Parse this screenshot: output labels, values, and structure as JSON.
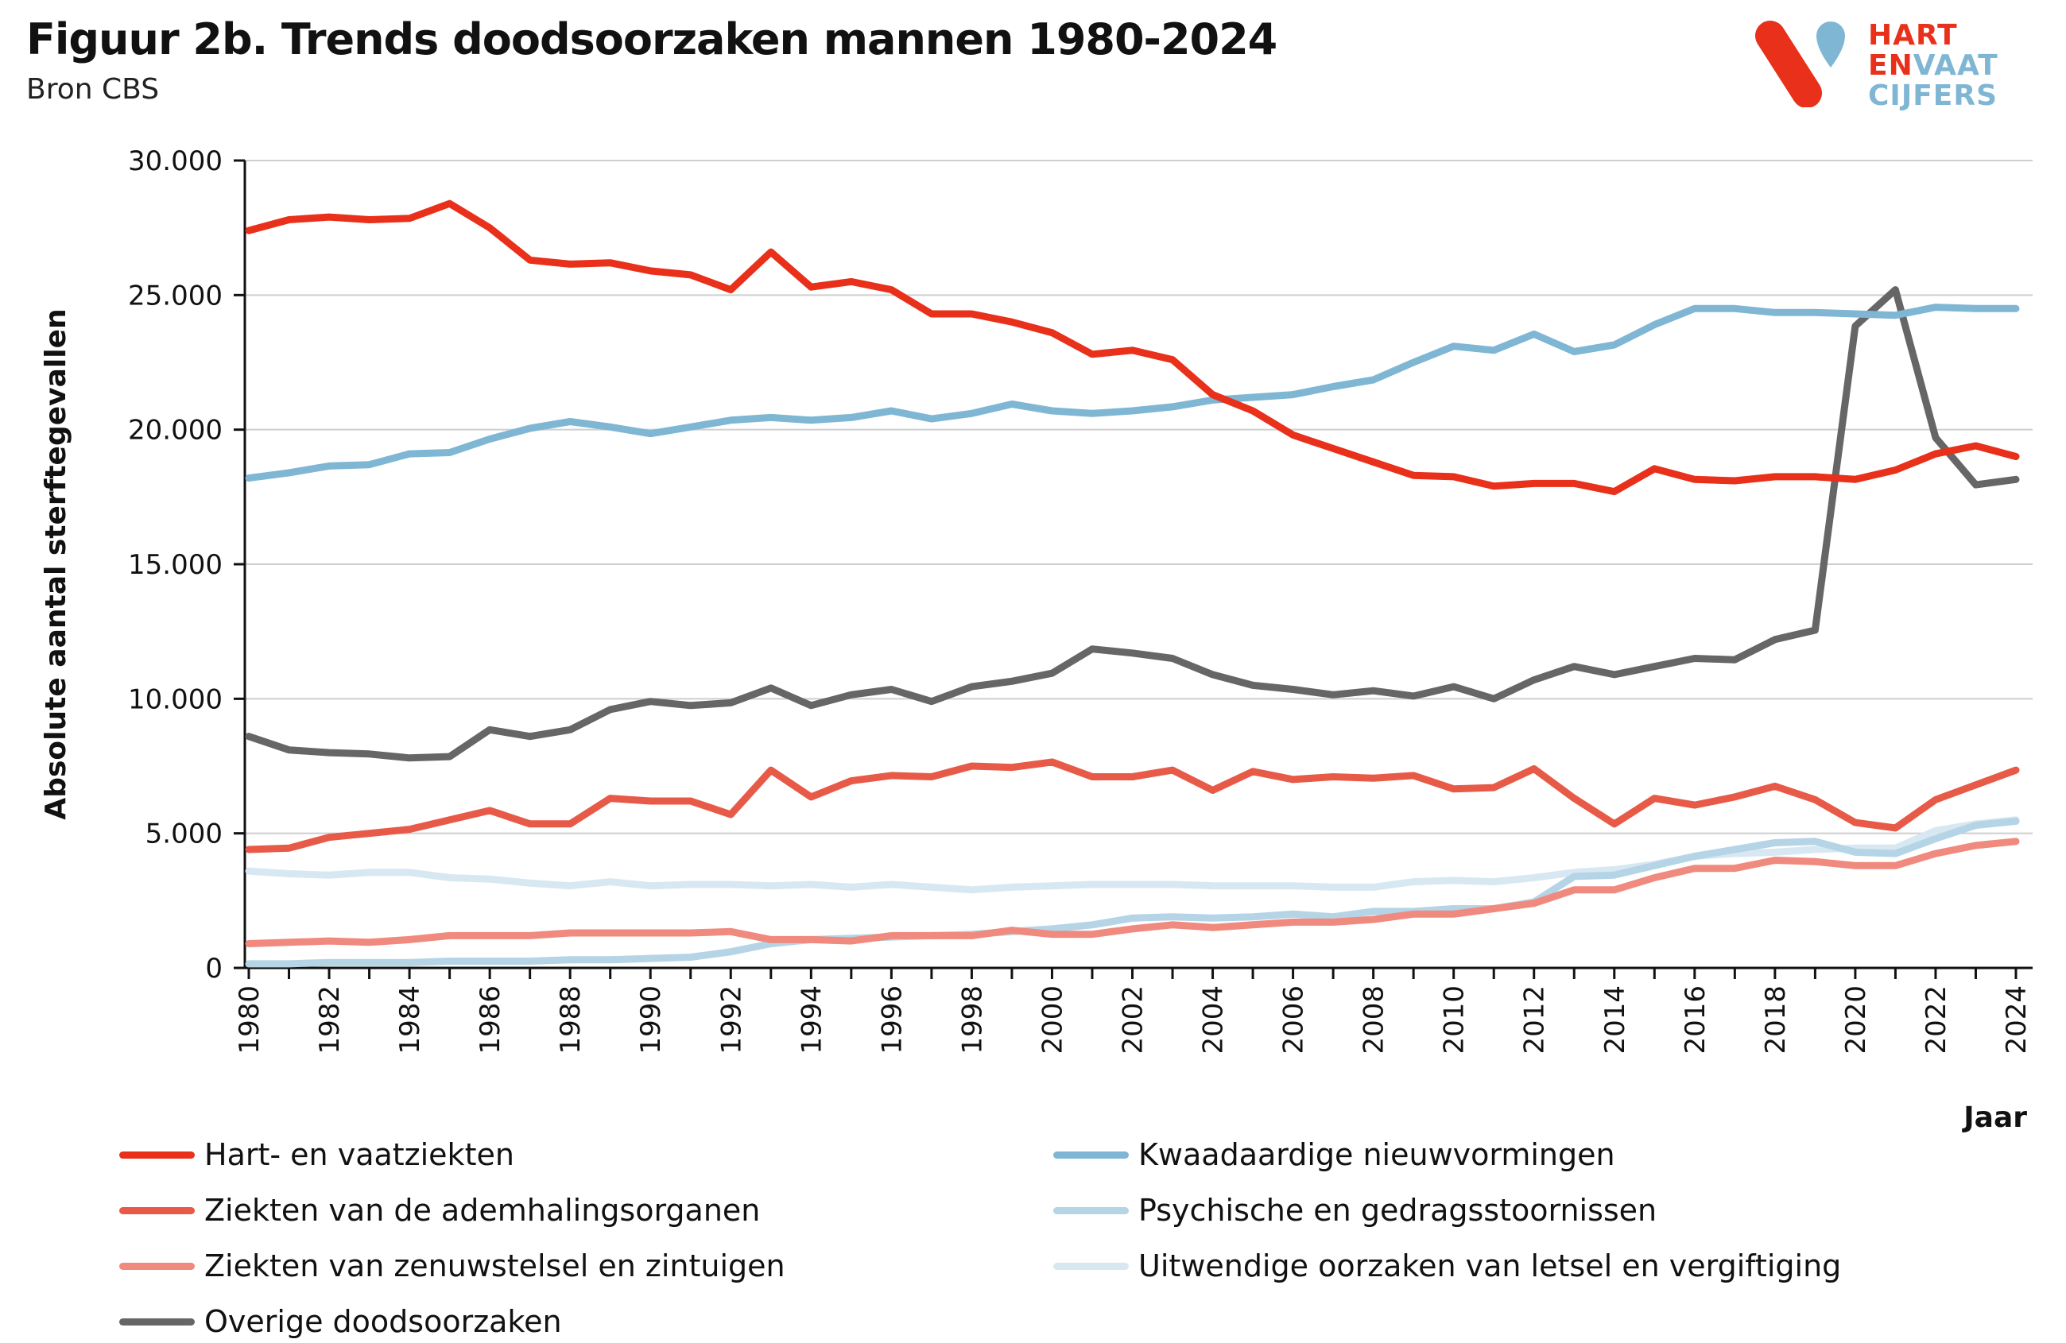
{
  "header": {
    "title": "Figuur 2b. Trends doodsoorzaken mannen 1980-2024",
    "subtitle": "Bron CBS"
  },
  "logo": {
    "line1": "HART",
    "line2a": "EN",
    "line2b": "VAAT",
    "line3": "CIJFERS",
    "colors": {
      "red": "#e8301a",
      "blue": "#7fb6d4"
    }
  },
  "chart_data": {
    "type": "line",
    "title": "Figuur 2b. Trends doodsoorzaken mannen 1980-2024",
    "subtitle": "Bron CBS",
    "xlabel": "Jaar",
    "ylabel": "Absolute aantal sterftegevallen",
    "ylim": [
      0,
      30000
    ],
    "yticks": [
      0,
      5000,
      10000,
      15000,
      20000,
      25000,
      30000
    ],
    "ytick_labels": [
      "0",
      "5.000",
      "10.000",
      "15.000",
      "20.000",
      "25.000",
      "30.000"
    ],
    "xtick_labels": [
      "1980",
      "1982",
      "1984",
      "1986",
      "1988",
      "1990",
      "1992",
      "1994",
      "1996",
      "1998",
      "2000",
      "2002",
      "2004",
      "2006",
      "2008",
      "2010",
      "2012",
      "2014",
      "2016",
      "2018",
      "2020",
      "2022",
      "2024"
    ],
    "grid": "horizontal",
    "legend_position": "bottom",
    "x": [
      1980,
      1981,
      1982,
      1983,
      1984,
      1985,
      1986,
      1987,
      1988,
      1989,
      1990,
      1991,
      1992,
      1993,
      1994,
      1995,
      1996,
      1997,
      1998,
      1999,
      2000,
      2001,
      2002,
      2003,
      2004,
      2005,
      2006,
      2007,
      2008,
      2009,
      2010,
      2011,
      2012,
      2013,
      2014,
      2015,
      2016,
      2017,
      2018,
      2019,
      2020,
      2021,
      2022,
      2023,
      2024
    ],
    "series": [
      {
        "name": "Hart- en vaatziekten",
        "color": "#e8301a",
        "values": [
          27400,
          27800,
          27900,
          27800,
          27850,
          28400,
          27500,
          26300,
          26150,
          26200,
          25900,
          25750,
          25200,
          26600,
          25300,
          25500,
          25200,
          24300,
          24300,
          24000,
          23600,
          22800,
          22950,
          22600,
          21300,
          20700,
          19800,
          19300,
          18800,
          18300,
          18250,
          17900,
          18000,
          18000,
          17700,
          18550,
          18150,
          18100,
          18250,
          18250,
          18150,
          18500,
          19100,
          19400,
          19000
        ]
      },
      {
        "name": "Kwaadaardige nieuwvormingen",
        "color": "#7fb6d4",
        "values": [
          18200,
          18400,
          18650,
          18700,
          19100,
          19150,
          19650,
          20050,
          20300,
          20100,
          19850,
          20100,
          20350,
          20450,
          20350,
          20450,
          20700,
          20400,
          20600,
          20950,
          20700,
          20600,
          20700,
          20850,
          21100,
          21200,
          21300,
          21600,
          21850,
          22500,
          23100,
          22950,
          23550,
          22900,
          23150,
          23900,
          24500,
          24500,
          24350,
          24350,
          24300,
          24250,
          24550,
          24500,
          24500
        ]
      },
      {
        "name": "Ziekten van de ademhalingsorganen",
        "color": "#e85a48",
        "values": [
          4400,
          4450,
          4850,
          5000,
          5150,
          5500,
          5850,
          5350,
          5350,
          6300,
          6200,
          6200,
          5700,
          7350,
          6350,
          6950,
          7150,
          7100,
          7500,
          7450,
          7650,
          7100,
          7100,
          7350,
          6600,
          7300,
          7000,
          7100,
          7050,
          7150,
          6650,
          6700,
          7400,
          6300,
          5350,
          6300,
          6050,
          6350,
          6750,
          6250,
          5400,
          5200,
          6250,
          6800,
          7350
        ]
      },
      {
        "name": "Psychische en gedragsstoornissen",
        "color": "#b5d4e6",
        "values": [
          150,
          150,
          200,
          200,
          200,
          250,
          250,
          250,
          300,
          300,
          350,
          400,
          600,
          900,
          1050,
          1100,
          1150,
          1200,
          1250,
          1350,
          1450,
          1600,
          1850,
          1900,
          1850,
          1900,
          2000,
          1900,
          2100,
          2100,
          2200,
          2200,
          2450,
          3400,
          3450,
          3800,
          4150,
          4400,
          4650,
          4700,
          4300,
          4250,
          4800,
          5300,
          5450
        ]
      },
      {
        "name": "Ziekten van zenuwstelsel en zintuigen",
        "color": "#f08a7e",
        "values": [
          900,
          950,
          1000,
          950,
          1050,
          1200,
          1200,
          1200,
          1300,
          1300,
          1300,
          1300,
          1350,
          1050,
          1050,
          1000,
          1200,
          1200,
          1200,
          1400,
          1250,
          1250,
          1450,
          1600,
          1500,
          1600,
          1700,
          1700,
          1800,
          2000,
          2000,
          2200,
          2400,
          2900,
          2900,
          3350,
          3700,
          3700,
          4000,
          3950,
          3800,
          3800,
          4250,
          4550,
          4700
        ]
      },
      {
        "name": "Uitwendige oorzaken van letsel en vergiftiging",
        "color": "#d8e8f2",
        "values": [
          3600,
          3500,
          3450,
          3550,
          3550,
          3350,
          3300,
          3150,
          3050,
          3200,
          3050,
          3100,
          3100,
          3050,
          3100,
          3000,
          3100,
          3000,
          2900,
          3000,
          3050,
          3100,
          3100,
          3100,
          3050,
          3050,
          3050,
          3000,
          3000,
          3200,
          3250,
          3200,
          3350,
          3550,
          3650,
          3850,
          4150,
          4250,
          4300,
          4400,
          4450,
          4450,
          5100,
          5350,
          5500
        ]
      },
      {
        "name": "Overige doodsoorzaken",
        "color": "#666666",
        "values": [
          8600,
          8100,
          8000,
          7950,
          7800,
          7850,
          8850,
          8600,
          8850,
          9600,
          9900,
          9750,
          9850,
          10400,
          9750,
          10150,
          10350,
          9900,
          10450,
          10650,
          10950,
          11850,
          11700,
          11500,
          10900,
          10500,
          10350,
          10150,
          10300,
          10100,
          10450,
          10000,
          10700,
          11200,
          10900,
          11200,
          11500,
          11450,
          12200,
          12550,
          23850,
          25200,
          19700,
          17950,
          18150
        ]
      }
    ]
  }
}
